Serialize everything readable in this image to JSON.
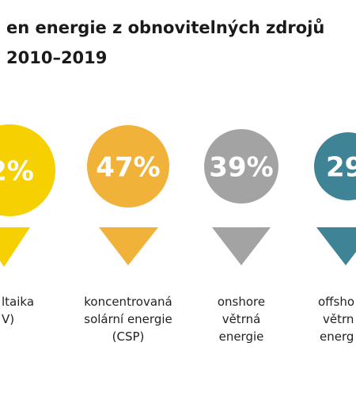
{
  "header": {
    "title_lines": [
      "en energie z obnovitelných zdrojů",
      "2010–2019"
    ]
  },
  "items": [
    {
      "value_label": "2%",
      "label_lines": [
        "ltaika",
        "V)"
      ]
    },
    {
      "value_label": "47%",
      "label_lines": [
        "koncentrovaná",
        "solární energie",
        "(CSP)"
      ]
    },
    {
      "value_label": "39%",
      "label_lines": [
        "onshore",
        "větrná",
        "energie"
      ]
    },
    {
      "value_label": "29",
      "label_lines": [
        "offsho",
        "větrn",
        "energ"
      ]
    }
  ]
}
